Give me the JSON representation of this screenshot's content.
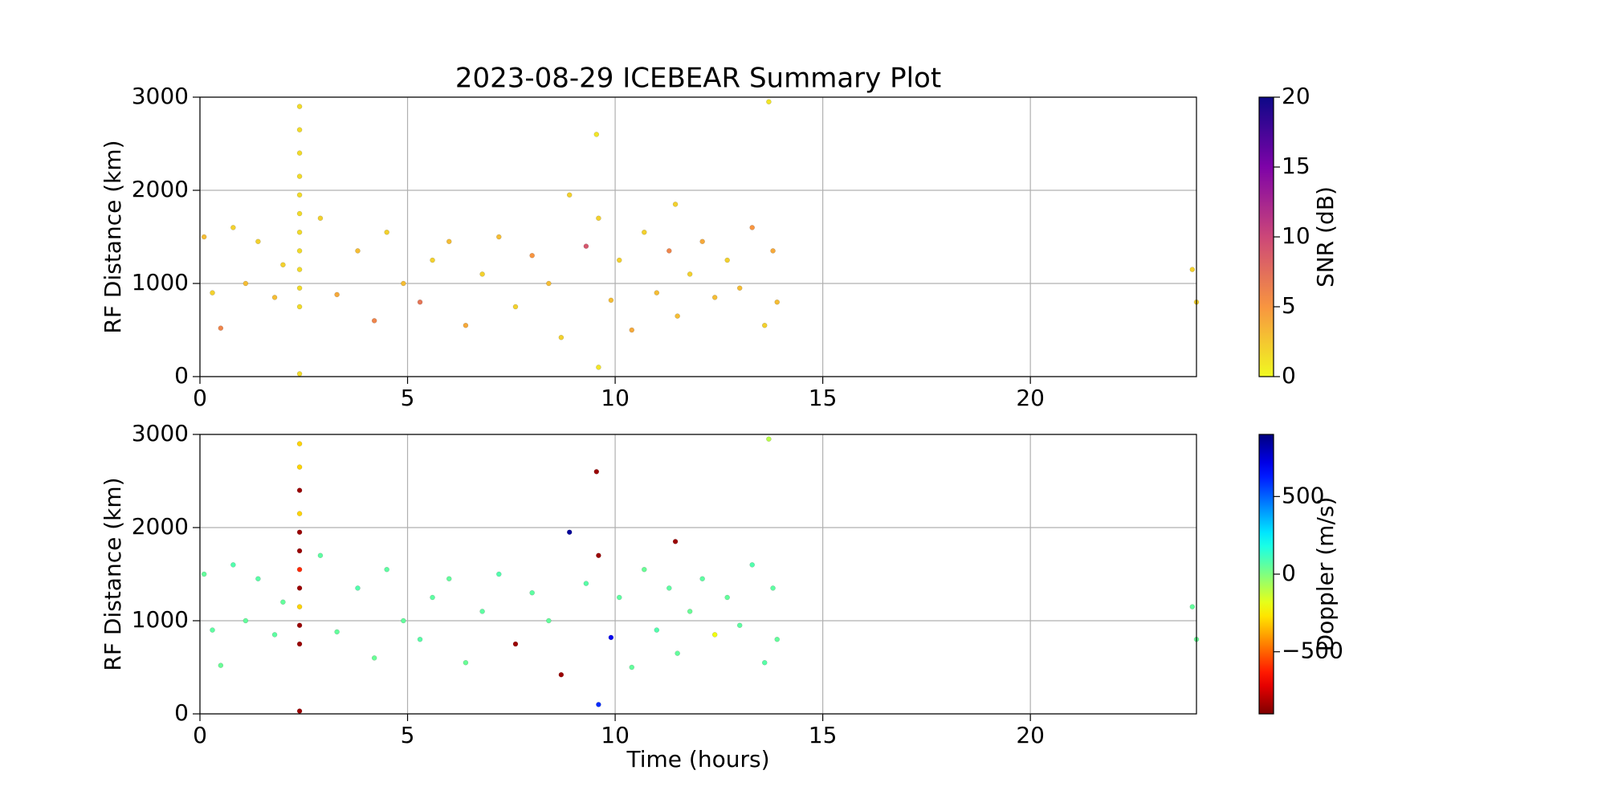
{
  "chart_data": [
    {
      "type": "scatter",
      "title": "2023-08-29 ICEBEAR Summary Plot",
      "ylabel": "RF Distance (km)",
      "x": [
        0.1,
        0.3,
        0.5,
        0.8,
        1.1,
        1.4,
        1.8,
        2.0,
        2.4,
        2.4,
        2.4,
        2.4,
        2.4,
        2.4,
        2.4,
        2.4,
        2.4,
        2.4,
        2.4,
        2.4,
        2.9,
        3.3,
        3.8,
        4.2,
        4.5,
        4.9,
        5.3,
        5.6,
        6.0,
        6.4,
        6.8,
        7.2,
        7.6,
        8.0,
        8.4,
        8.7,
        8.9,
        9.3,
        9.55,
        9.6,
        9.6,
        9.9,
        10.1,
        10.4,
        10.7,
        11.0,
        11.3,
        11.45,
        11.5,
        11.8,
        12.1,
        12.4,
        12.7,
        13.0,
        13.3,
        13.6,
        13.7,
        13.8,
        13.9,
        24.0,
        23.9
      ],
      "y": [
        1500,
        900,
        520,
        1600,
        1000,
        1450,
        850,
        1200,
        750,
        950,
        1150,
        1350,
        1550,
        1750,
        1950,
        2150,
        2400,
        2650,
        2900,
        30,
        1700,
        880,
        1350,
        600,
        1550,
        1000,
        800,
        1250,
        1450,
        550,
        1100,
        1500,
        750,
        1300,
        1000,
        420,
        1950,
        1400,
        2600,
        100,
        1700,
        820,
        1250,
        500,
        1550,
        900,
        1350,
        1850,
        650,
        1100,
        1450,
        850,
        1250,
        950,
        1600,
        550,
        2950,
        1350,
        800,
        800,
        1150
      ],
      "c": [
        3,
        2,
        6,
        2,
        3,
        2,
        3,
        2,
        1.5,
        1.5,
        1.5,
        1.5,
        1.5,
        1.5,
        1.5,
        1.5,
        1.5,
        1.5,
        1.5,
        1.5,
        2,
        4,
        3,
        6,
        2,
        3,
        7,
        2,
        3,
        4,
        2,
        3,
        2,
        5,
        3,
        2,
        2,
        9,
        1,
        1,
        2,
        3,
        2,
        4,
        2,
        3,
        6,
        2,
        3,
        2,
        4,
        3,
        2,
        3,
        5,
        2,
        1,
        4,
        3,
        2,
        2
      ],
      "xlim": [
        0,
        24
      ],
      "ylim": [
        0,
        3000
      ],
      "xticks": [
        0,
        5,
        10,
        15,
        20
      ],
      "yticks": [
        0,
        1000,
        2000,
        3000
      ],
      "grid": true,
      "colorbar": {
        "label": "SNR (dB)",
        "colormap": "plasma_r",
        "lim": [
          0,
          20
        ],
        "ticks": [
          0,
          5,
          10,
          15,
          20
        ]
      }
    },
    {
      "type": "scatter",
      "xlabel": "Time (hours)",
      "ylabel": "RF Distance (km)",
      "x": [
        0.1,
        0.3,
        0.5,
        0.8,
        1.1,
        1.4,
        1.8,
        2.0,
        2.4,
        2.4,
        2.4,
        2.4,
        2.4,
        2.4,
        2.4,
        2.4,
        2.4,
        2.4,
        2.4,
        2.4,
        2.9,
        3.3,
        3.8,
        4.2,
        4.5,
        4.9,
        5.3,
        5.6,
        6.0,
        6.4,
        6.8,
        7.2,
        7.6,
        8.0,
        8.4,
        8.7,
        8.9,
        9.3,
        9.55,
        9.6,
        9.6,
        9.9,
        10.1,
        10.4,
        10.7,
        11.0,
        11.3,
        11.45,
        11.5,
        11.8,
        12.1,
        12.4,
        12.7,
        13.0,
        13.3,
        13.6,
        13.7,
        13.8,
        13.9,
        24.0,
        23.9
      ],
      "y": [
        1500,
        900,
        520,
        1600,
        1000,
        1450,
        850,
        1200,
        750,
        950,
        1150,
        1350,
        1550,
        1750,
        1950,
        2150,
        2400,
        2650,
        2900,
        30,
        1700,
        880,
        1350,
        600,
        1550,
        1000,
        800,
        1250,
        1450,
        550,
        1100,
        1500,
        750,
        1300,
        1000,
        420,
        1950,
        1400,
        2600,
        100,
        1700,
        820,
        1250,
        500,
        1550,
        900,
        1350,
        1850,
        650,
        1100,
        1450,
        850,
        1250,
        950,
        1600,
        550,
        2950,
        1350,
        800,
        800,
        1150
      ],
      "c": [
        50,
        60,
        40,
        80,
        50,
        70,
        60,
        50,
        -850,
        -850,
        -300,
        -850,
        -600,
        -850,
        -850,
        -300,
        -850,
        -300,
        -300,
        -850,
        60,
        50,
        80,
        40,
        60,
        50,
        70,
        60,
        50,
        40,
        60,
        80,
        -850,
        60,
        50,
        -850,
        850,
        70,
        -850,
        600,
        -850,
        700,
        60,
        50,
        40,
        80,
        60,
        -850,
        50,
        40,
        60,
        -200,
        50,
        60,
        80,
        70,
        -100,
        60,
        50,
        40,
        50
      ],
      "xlim": [
        0,
        24
      ],
      "ylim": [
        0,
        3000
      ],
      "xticks": [
        0,
        5,
        10,
        15,
        20
      ],
      "yticks": [
        0,
        1000,
        2000,
        3000
      ],
      "grid": true,
      "colorbar": {
        "label": "Doppler (m/s)",
        "colormap": "jet_r",
        "lim": [
          -900,
          900
        ],
        "ticks": [
          {
            "value": -500,
            "label": "−500"
          },
          0,
          500
        ]
      }
    }
  ]
}
